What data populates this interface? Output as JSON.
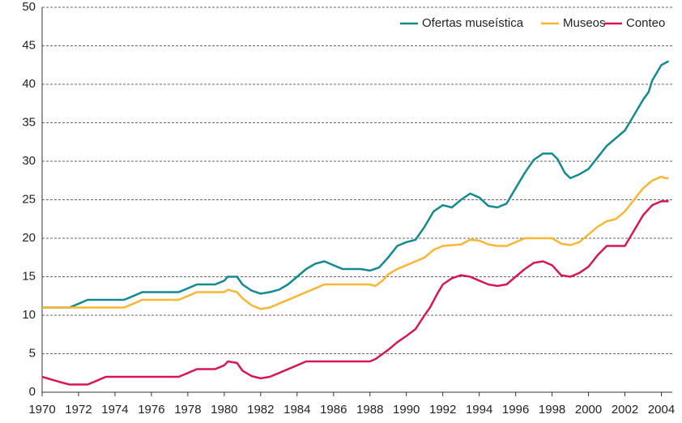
{
  "chart_data": {
    "type": "line",
    "xlim": [
      1970,
      2004.6
    ],
    "xticks": [
      1970,
      1972,
      1974,
      1976,
      1978,
      1980,
      1982,
      1984,
      1986,
      1988,
      1990,
      1992,
      1994,
      1996,
      1998,
      2000,
      2002,
      2004
    ],
    "ylim": [
      0,
      50
    ],
    "yticks": [
      0,
      5,
      10,
      15,
      20,
      25,
      30,
      35,
      40,
      45,
      50
    ],
    "grid": true,
    "legend": "top-right",
    "series": [
      {
        "name": "Ofertas museística",
        "color": "#138a92",
        "x": [
          1970,
          1971,
          1971.5,
          1972,
          1972.5,
          1973,
          1974,
          1974.5,
          1975,
          1975.5,
          1976,
          1977,
          1977.5,
          1978,
          1978.5,
          1979,
          1979.5,
          1980,
          1980.2,
          1980.7,
          1981,
          1981.5,
          1982,
          1982.5,
          1983,
          1983.5,
          1984,
          1984.5,
          1985,
          1985.5,
          1986,
          1986.5,
          1987,
          1987.5,
          1988,
          1988.5,
          1989,
          1989.5,
          1990,
          1990.5,
          1991,
          1991.5,
          1992,
          1992.5,
          1993,
          1993.5,
          1994,
          1994.5,
          1995,
          1995.5,
          1996,
          1996.5,
          1997,
          1997.5,
          1998,
          1998.3,
          1998.7,
          1999,
          1999.5,
          2000,
          2000.5,
          2001,
          2001.5,
          2002,
          2002.5,
          2003,
          2003.3,
          2003.5,
          2004,
          2004.4
        ],
        "values": [
          11,
          11,
          11,
          11.5,
          12,
          12,
          12,
          12,
          12.5,
          13,
          13,
          13,
          13,
          13.5,
          14,
          14,
          14,
          14.5,
          15,
          15,
          14,
          13.2,
          12.8,
          13,
          13.3,
          14,
          15,
          16,
          16.7,
          17,
          16.5,
          16,
          16,
          16,
          15.8,
          16.2,
          17.5,
          19,
          19.5,
          19.8,
          21.5,
          23.5,
          24.3,
          24,
          25,
          25.8,
          25.3,
          24.2,
          24,
          24.5,
          26.5,
          28.5,
          30.2,
          31,
          31,
          30.3,
          28.5,
          27.8,
          28.3,
          29,
          30.5,
          32,
          33,
          34,
          36,
          38,
          39,
          40.5,
          42.5,
          43
        ]
      },
      {
        "name": "Museos",
        "color": "#f7b733",
        "x": [
          1970,
          1974.5,
          1975,
          1975.5,
          1977.5,
          1978,
          1978.5,
          1980,
          1980.2,
          1980.7,
          1981,
          1981.5,
          1982,
          1982.5,
          1983,
          1984,
          1985,
          1985.5,
          1988,
          1988.3,
          1988.7,
          1989,
          1989.5,
          1990,
          1990.5,
          1991,
          1991.5,
          1992,
          1993,
          1993.5,
          1994,
          1994.5,
          1995,
          1995.5,
          1996,
          1996.5,
          1998,
          1998.5,
          1999,
          1999.5,
          2000,
          2000.5,
          2001,
          2001.5,
          2002,
          2002.5,
          2003,
          2003.5,
          2004,
          2004.2,
          2004.4
        ],
        "values": [
          11,
          11,
          11.5,
          12,
          12,
          12.5,
          13,
          13,
          13.3,
          13,
          12.2,
          11.3,
          10.8,
          11,
          11.5,
          12.5,
          13.5,
          14,
          14,
          13.8,
          14.5,
          15.3,
          16,
          16.5,
          17,
          17.5,
          18.5,
          19,
          19.2,
          19.8,
          19.7,
          19.2,
          19,
          19,
          19.5,
          20,
          20,
          19.3,
          19.1,
          19.5,
          20.5,
          21.5,
          22.2,
          22.5,
          23.5,
          25,
          26.5,
          27.5,
          28,
          27.8,
          27.8
        ]
      },
      {
        "name": "Conteo",
        "color": "#d7165a",
        "x": [
          1970,
          1971,
          1971.5,
          1972,
          1972.5,
          1973,
          1973.5,
          1977.5,
          1978,
          1978.5,
          1979.5,
          1980,
          1980.2,
          1980.7,
          1981,
          1981.5,
          1982,
          1982.5,
          1983,
          1984,
          1984.5,
          1988,
          1988.3,
          1989,
          1989.5,
          1990,
          1990.5,
          1991,
          1991.3,
          1991.7,
          1992,
          1992.5,
          1993,
          1993.5,
          1994,
          1994.5,
          1995,
          1995.5,
          1996,
          1996.5,
          1997,
          1997.5,
          1998,
          1998.5,
          1999,
          1999.5,
          2000,
          2000.5,
          2001,
          2001.5,
          2002,
          2002.5,
          2003,
          2003.5,
          2004,
          2004.4
        ],
        "values": [
          2,
          1.3,
          1,
          1,
          1,
          1.5,
          2,
          2,
          2.5,
          3,
          3,
          3.5,
          4,
          3.8,
          2.8,
          2.1,
          1.8,
          2,
          2.5,
          3.5,
          4,
          4,
          4.3,
          5.5,
          6.5,
          7.3,
          8.2,
          10,
          11,
          12.8,
          14,
          14.8,
          15.2,
          15,
          14.5,
          14,
          13.8,
          14,
          15,
          16,
          16.8,
          17,
          16.5,
          15.2,
          15,
          15.5,
          16.3,
          17.8,
          19,
          19,
          19,
          21,
          23,
          24.3,
          24.8,
          24.8
        ]
      }
    ]
  }
}
